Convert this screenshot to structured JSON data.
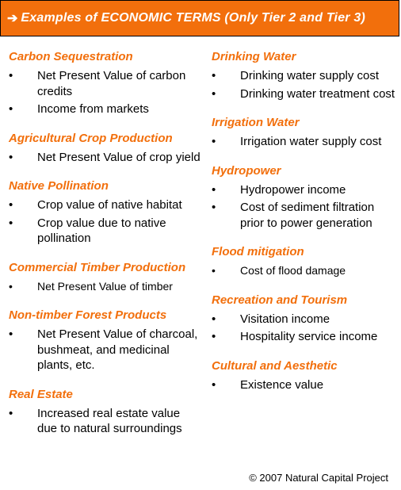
{
  "banner": {
    "arrow": "➔",
    "title": "Examples  of ECONOMIC TERMS  (Only Tier 2 and Tier 3)"
  },
  "colors": {
    "accent": "#f26f0c",
    "banner_text": "#ffffff"
  },
  "left_sections": [
    {
      "heading": "Carbon Sequestration",
      "items": [
        "Net Present Value of carbon credits",
        "Income from markets"
      ]
    },
    {
      "heading": "Agricultural Crop Production",
      "items": [
        "Net Present Value of crop yield"
      ]
    },
    {
      "heading": "Native Pollination",
      "items": [
        "Crop value of native habitat",
        "Crop value due to native pollination"
      ]
    },
    {
      "heading": "Commercial Timber Production",
      "items": [
        "Net Present Value of timber"
      ]
    },
    {
      "heading": "Non-timber Forest Products",
      "items": [
        "Net Present Value of charcoal, bushmeat, and medicinal plants, etc."
      ]
    },
    {
      "heading": "Real Estate",
      "items": [
        "Increased real estate value due to natural surroundings"
      ]
    }
  ],
  "right_sections": [
    {
      "heading": "Drinking Water",
      "items": [
        "Drinking water supply cost",
        "Drinking water treatment cost"
      ]
    },
    {
      "heading": "Irrigation Water",
      "items": [
        "Irrigation water supply cost"
      ]
    },
    {
      "heading": "Hydropower",
      "items": [
        "Hydropower income",
        "Cost of sediment filtration prior to power generation"
      ]
    },
    {
      "heading": "Flood mitigation",
      "items": [
        "Cost of flood damage"
      ]
    },
    {
      "heading": "Recreation and Tourism",
      "items": [
        "Visitation income",
        "Hospitality service income"
      ]
    },
    {
      "heading": "Cultural and Aesthetic",
      "items": [
        "Existence value"
      ]
    }
  ],
  "footer": "© 2007 Natural Capital Project"
}
